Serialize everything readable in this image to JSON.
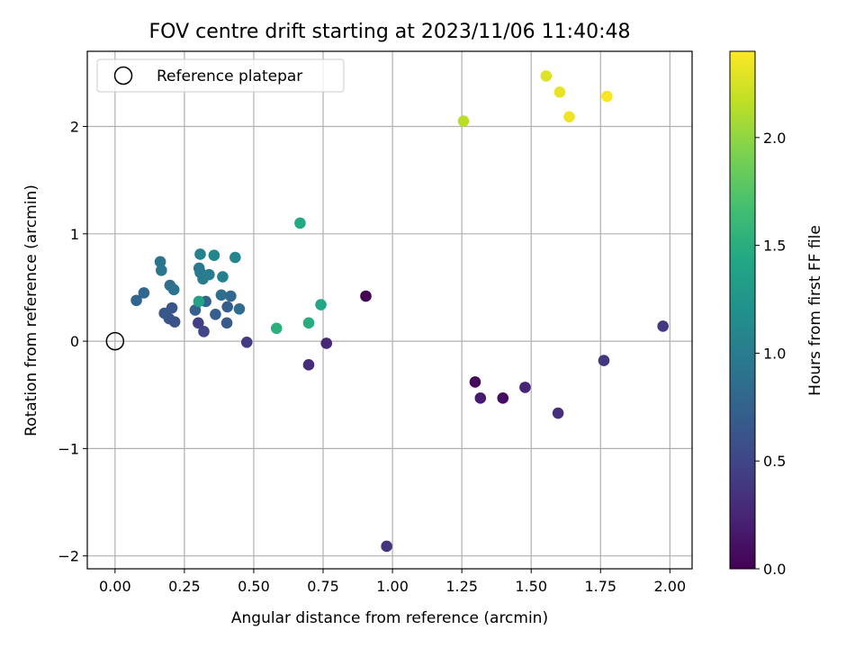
{
  "chart_data": {
    "type": "scatter",
    "title": "FOV centre drift starting at 2023/11/06 11:40:48",
    "xlabel": "Angular distance from reference (arcmin)",
    "ylabel": "Rotation from reference (arcmin)",
    "xlim": [
      -0.1,
      2.08
    ],
    "ylim": [
      -2.12,
      2.7
    ],
    "xticks": [
      0.0,
      0.25,
      0.5,
      0.75,
      1.0,
      1.25,
      1.5,
      1.75,
      2.0
    ],
    "xtick_labels": [
      "0.00",
      "0.25",
      "0.50",
      "0.75",
      "1.00",
      "1.25",
      "1.50",
      "1.75",
      "2.00"
    ],
    "yticks": [
      -2,
      -1,
      0,
      1,
      2
    ],
    "ytick_labels": [
      "−2",
      "−1",
      "0",
      "1",
      "2"
    ],
    "grid": true,
    "legend": {
      "position": "upper-left",
      "entries": [
        {
          "label": "Reference platepar",
          "marker": "open-circle"
        }
      ]
    },
    "reference_point": {
      "x": 0.0,
      "y": 0.0
    },
    "colorbar": {
      "label": "Hours from first FF file",
      "colormap": "viridis",
      "range": [
        0.0,
        2.4
      ],
      "ticks": [
        0.0,
        0.5,
        1.0,
        1.5,
        2.0
      ],
      "tick_labels": [
        "0.0",
        "0.5",
        "1.0",
        "1.5",
        "2.0"
      ]
    },
    "points": [
      {
        "x": 0.904,
        "y": 0.42,
        "c": 0.0
      },
      {
        "x": 1.298,
        "y": -0.38,
        "c": 0.05
      },
      {
        "x": 1.398,
        "y": -0.53,
        "c": 0.08
      },
      {
        "x": 1.317,
        "y": -0.53,
        "c": 0.18
      },
      {
        "x": 1.478,
        "y": -0.43,
        "c": 0.25
      },
      {
        "x": 0.762,
        "y": -0.02,
        "c": 0.27
      },
      {
        "x": 0.698,
        "y": -0.22,
        "c": 0.3
      },
      {
        "x": 1.597,
        "y": -0.67,
        "c": 0.32
      },
      {
        "x": 0.979,
        "y": -1.91,
        "c": 0.35
      },
      {
        "x": 1.762,
        "y": -0.18,
        "c": 0.38
      },
      {
        "x": 1.975,
        "y": 0.14,
        "c": 0.4
      },
      {
        "x": 0.475,
        "y": -0.01,
        "c": 0.42
      },
      {
        "x": 0.3,
        "y": 0.17,
        "c": 0.45
      },
      {
        "x": 0.32,
        "y": 0.09,
        "c": 0.5
      },
      {
        "x": 0.215,
        "y": 0.18,
        "c": 0.6
      },
      {
        "x": 0.195,
        "y": 0.21,
        "c": 0.62
      },
      {
        "x": 0.205,
        "y": 0.31,
        "c": 0.64
      },
      {
        "x": 0.178,
        "y": 0.26,
        "c": 0.66
      },
      {
        "x": 0.403,
        "y": 0.17,
        "c": 0.68
      },
      {
        "x": 0.405,
        "y": 0.32,
        "c": 0.7
      },
      {
        "x": 0.362,
        "y": 0.25,
        "c": 0.72
      },
      {
        "x": 0.289,
        "y": 0.29,
        "c": 0.74
      },
      {
        "x": 0.327,
        "y": 0.37,
        "c": 0.76
      },
      {
        "x": 0.077,
        "y": 0.38,
        "c": 0.78
      },
      {
        "x": 0.104,
        "y": 0.45,
        "c": 0.8
      },
      {
        "x": 0.417,
        "y": 0.42,
        "c": 0.82
      },
      {
        "x": 0.448,
        "y": 0.3,
        "c": 0.84
      },
      {
        "x": 0.383,
        "y": 0.43,
        "c": 0.86
      },
      {
        "x": 0.198,
        "y": 0.52,
        "c": 0.88
      },
      {
        "x": 0.212,
        "y": 0.48,
        "c": 0.9
      },
      {
        "x": 0.163,
        "y": 0.74,
        "c": 0.92
      },
      {
        "x": 0.167,
        "y": 0.66,
        "c": 0.94
      },
      {
        "x": 0.303,
        "y": 0.68,
        "c": 0.96
      },
      {
        "x": 0.307,
        "y": 0.64,
        "c": 0.98
      },
      {
        "x": 0.317,
        "y": 0.58,
        "c": 1.0
      },
      {
        "x": 0.339,
        "y": 0.62,
        "c": 1.02
      },
      {
        "x": 0.388,
        "y": 0.6,
        "c": 1.04
      },
      {
        "x": 0.307,
        "y": 0.81,
        "c": 1.06
      },
      {
        "x": 0.357,
        "y": 0.8,
        "c": 1.08
      },
      {
        "x": 0.433,
        "y": 0.78,
        "c": 1.1
      },
      {
        "x": 0.302,
        "y": 0.37,
        "c": 1.38
      },
      {
        "x": 0.742,
        "y": 0.34,
        "c": 1.42
      },
      {
        "x": 0.698,
        "y": 0.17,
        "c": 1.48
      },
      {
        "x": 0.582,
        "y": 0.12,
        "c": 1.52
      },
      {
        "x": 0.667,
        "y": 1.1,
        "c": 1.45
      },
      {
        "x": 1.256,
        "y": 2.05,
        "c": 2.15
      },
      {
        "x": 1.554,
        "y": 2.47,
        "c": 2.28
      },
      {
        "x": 1.603,
        "y": 2.32,
        "c": 2.32
      },
      {
        "x": 1.637,
        "y": 2.09,
        "c": 2.35
      },
      {
        "x": 1.773,
        "y": 2.28,
        "c": 2.38
      }
    ]
  }
}
